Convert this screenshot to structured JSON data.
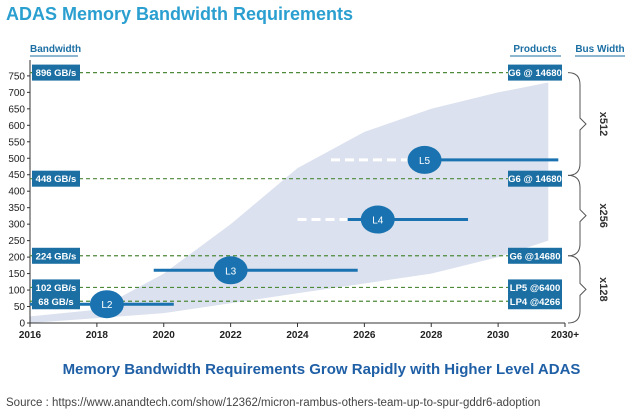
{
  "title": "ADAS Memory Bandwidth Requirements",
  "subtitle": "Memory Bandwidth Requirements Grow Rapidly with Higher Level ADAS",
  "source": "Source : https://www.anandtech.com/show/12362/micron-rambus-others-team-up-to-spur-gddr6-adoption",
  "colors": {
    "accent": "#1a73b0",
    "box": "#1b6fa3",
    "band": "#dbe1ee",
    "dash": "#4e8a3a",
    "title": "#2a9fd0",
    "subtitle": "#1f5fa6"
  },
  "chart_data": {
    "type": "area",
    "ylabel": "Bandwidth",
    "right_header_products": "Products",
    "right_header_buswidth": "Bus Width",
    "x_tick_labels": [
      "2016",
      "2018",
      "2020",
      "2022",
      "2024",
      "2026",
      "2028",
      "2030",
      "2030+"
    ],
    "x_tick_values": [
      2016,
      2018,
      2020,
      2022,
      2024,
      2026,
      2028,
      2030,
      2032
    ],
    "xlim": [
      2016,
      2032
    ],
    "y_ticks": [
      0,
      50,
      100,
      150,
      200,
      250,
      300,
      350,
      400,
      450,
      500,
      550,
      600,
      650,
      700,
      750
    ],
    "ylim": [
      0,
      780
    ],
    "grid": false,
    "band": {
      "x": [
        2016,
        2018,
        2020,
        2022,
        2024,
        2026,
        2028,
        2030,
        2031.5
      ],
      "upper": [
        20,
        40,
        150,
        300,
        470,
        580,
        650,
        700,
        730
      ],
      "lower": [
        0,
        15,
        30,
        60,
        90,
        120,
        150,
        200,
        250
      ]
    },
    "bandwidth_lines": [
      {
        "value": 896,
        "y": 760,
        "left_label": "896 GB/s",
        "product": "G6 @ 14680"
      },
      {
        "value": 448,
        "y": 438,
        "left_label": "448 GB/s",
        "product": "G6 @ 14680"
      },
      {
        "value": 224,
        "y": 204,
        "left_label": "224 GB/s",
        "product": "G6 @14680"
      },
      {
        "value": 102,
        "y": 108,
        "left_label": "102 GB/s",
        "product": "LP5 @6400"
      },
      {
        "value": 68,
        "y": 66,
        "left_label": "68 GB/s",
        "product": "LP4 @4266"
      }
    ],
    "adas_levels": [
      {
        "label": "L2",
        "x_start": 2016,
        "x_end": 2020.3,
        "y": 57,
        "circle_x": 2018.3
      },
      {
        "label": "L3",
        "x_start": 2019.7,
        "x_end": 2025.8,
        "y": 160,
        "circle_x": 2022.0
      },
      {
        "label": "L4",
        "x_start": 2024.0,
        "x_end": 2029.1,
        "y": 314,
        "circle_x": 2026.4,
        "dash_until": 2025.5
      },
      {
        "label": "L5",
        "x_start": 2025.0,
        "x_end": 2031.8,
        "y": 495,
        "circle_x": 2027.8,
        "dash_until": 2027.3
      }
    ],
    "bus_widths": [
      {
        "label": "x512",
        "from": 448,
        "to": 760
      },
      {
        "label": "x256",
        "from": 204,
        "to": 448
      },
      {
        "label": "x128",
        "from": 0,
        "to": 204
      }
    ]
  }
}
